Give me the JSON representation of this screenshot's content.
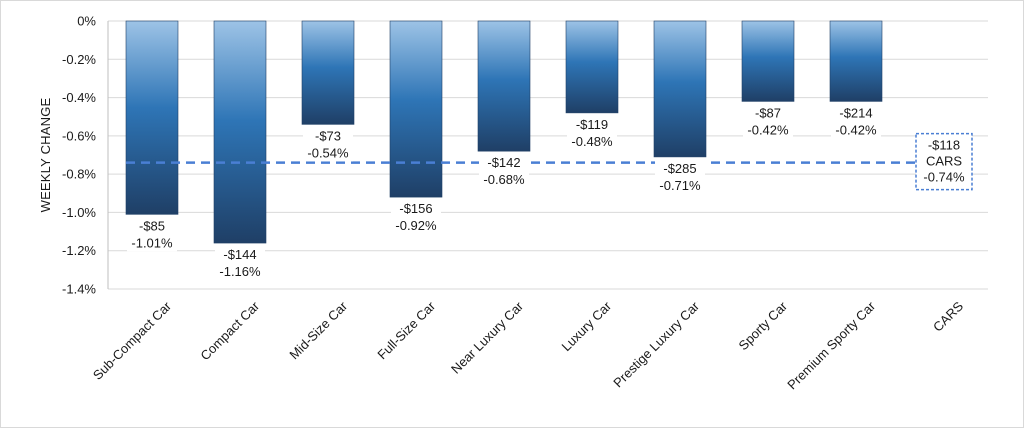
{
  "chart_data": {
    "type": "bar",
    "title": "",
    "xlabel": "",
    "ylabel": "WEEKLY CHANGE",
    "ylim": [
      -1.4,
      0
    ],
    "yticks": [
      0,
      -0.2,
      -0.4,
      -0.6,
      -0.8,
      -1.0,
      -1.2,
      -1.4
    ],
    "ytick_labels": [
      "0%",
      "-0.2%",
      "-0.4%",
      "-0.6%",
      "-0.8%",
      "-1.0%",
      "-1.2%",
      "-1.4%"
    ],
    "grid": true,
    "categories": [
      "Sub-Compact Car",
      "Compact Car",
      "Mid-Size Car",
      "Full-Size Car",
      "Near Luxury Car",
      "Luxury Car",
      "Prestige Luxury Car",
      "Sporty Car",
      "Premium Sporty Car",
      "CARS"
    ],
    "values": [
      -1.01,
      -1.16,
      -0.54,
      -0.92,
      -0.68,
      -0.48,
      -0.71,
      -0.42,
      -0.42,
      null
    ],
    "dollar_labels": [
      "-$85",
      "-$144",
      "-$73",
      "-$156",
      "-$142",
      "-$119",
      "-$285",
      "-$87",
      "-$214"
    ],
    "percent_labels": [
      "-1.01%",
      "-1.16%",
      "-0.54%",
      "-0.92%",
      "-0.68%",
      "-0.48%",
      "-0.71%",
      "-0.42%",
      "-0.42%"
    ],
    "reference": {
      "value": -0.74,
      "dollar_label": "-$118",
      "name_label": "CARS",
      "percent_label": "-0.74%",
      "style": "dashed",
      "color": "#4a7fd4"
    },
    "bar_gradient": {
      "top": "#9dc3e6",
      "mid": "#2e75b6",
      "bottom": "#1f3f66"
    }
  }
}
